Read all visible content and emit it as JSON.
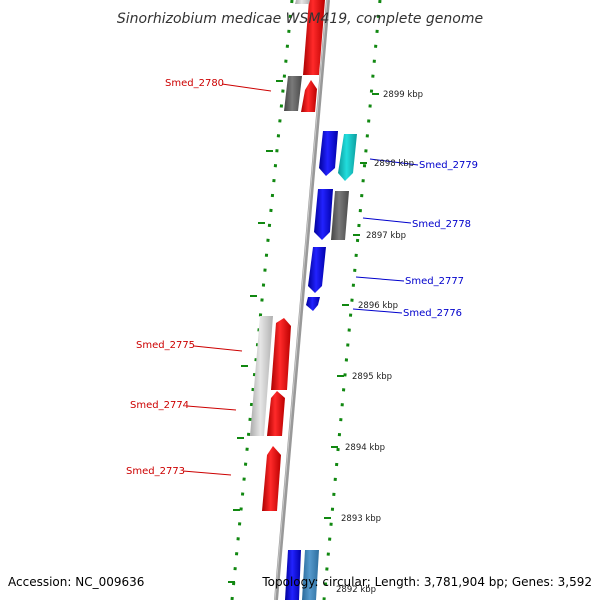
{
  "title": "Sinorhizobium medicae WSM419, complete genome",
  "accession": "Accession: NC_009636",
  "topology": "Topology: circular; Length: 3,781,904 bp; Genes: 3,592",
  "scale_labels": [
    "2899 kbp",
    "2898 kbp",
    "2897 kbp",
    "2896 kbp",
    "2895 kbp",
    "2894 kbp",
    "2893 kbp",
    "2892 kbp"
  ],
  "genes": {
    "smed_2780": "Smed_2780",
    "smed_2779": "Smed_2779",
    "smed_2778": "Smed_2778",
    "smed_2777": "Smed_2777",
    "smed_2776": "Smed_2776",
    "smed_2775": "Smed_2775",
    "smed_2774": "Smed_2774",
    "smed_2773": "Smed_2773"
  },
  "colors": {
    "forward_strand_label": "#cc0000",
    "reverse_strand_label": "#0000cc",
    "dots": "#118811",
    "backbone": "#999999",
    "red_gene": "#ff0000",
    "blue_gene": "#0000ee",
    "cyan_gene": "#11cccc",
    "dark_gray_gene": "#666666",
    "light_gray_gene": "#cccccc",
    "steel_gene": "#4488bb"
  }
}
